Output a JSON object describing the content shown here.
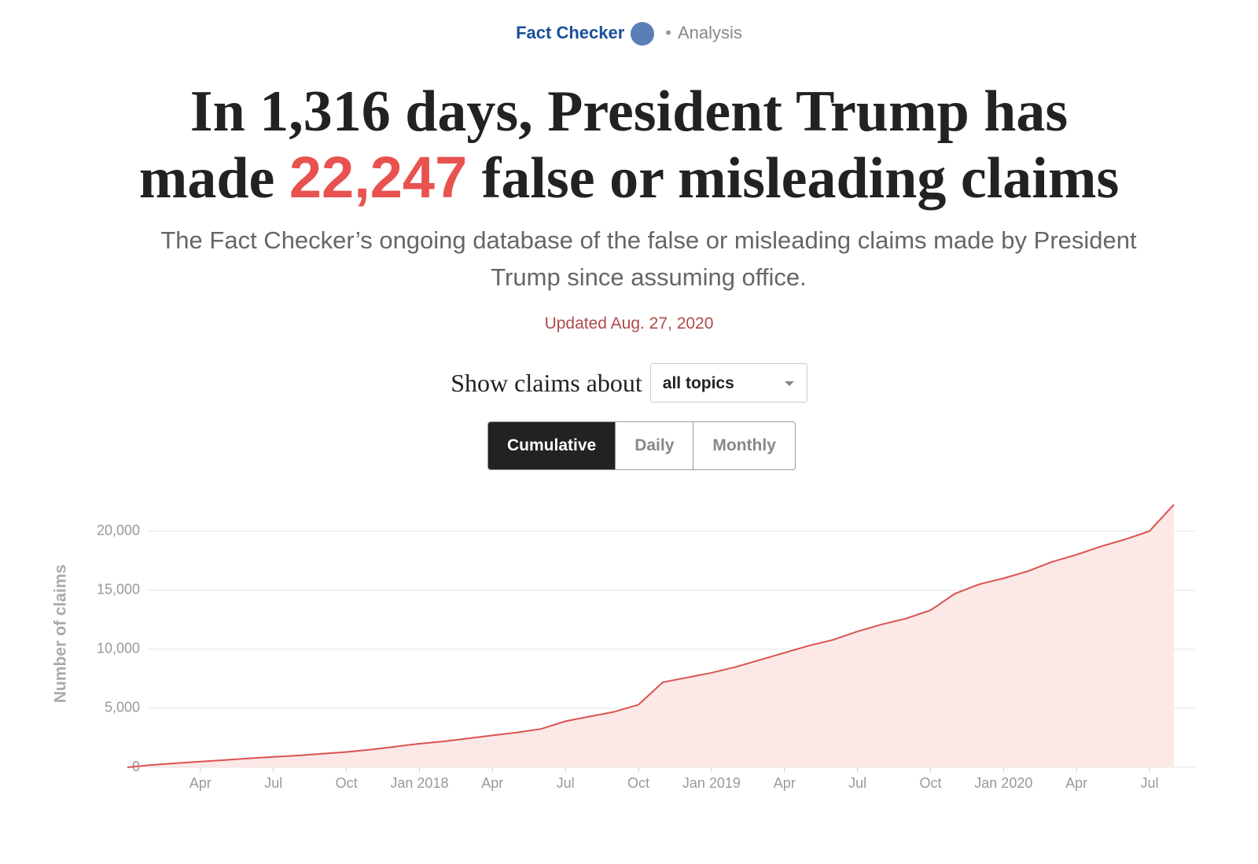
{
  "header": {
    "section": "Fact Checker",
    "label": "Analysis"
  },
  "headline": {
    "before": "In 1,316 days, President Trump has made",
    "number": "22,247",
    "after": "false or misleading claims"
  },
  "subtitle": "The Fact Checker’s ongoing database of the false or misleading claims made by President Trump since assuming office.",
  "updated": "Updated Aug. 27, 2020",
  "filter": {
    "label": "Show claims about",
    "selected": "all topics"
  },
  "views": [
    "Cumulative",
    "Daily",
    "Monthly"
  ],
  "active_view": "Cumulative",
  "chart_data": {
    "type": "area",
    "y_label": "Number of claims",
    "x": [
      "2017-01",
      "2017-02",
      "2017-03",
      "2017-04",
      "2017-05",
      "2017-06",
      "2017-07",
      "2017-08",
      "2017-09",
      "2017-10",
      "2017-11",
      "2017-12",
      "2018-01",
      "2018-02",
      "2018-03",
      "2018-04",
      "2018-05",
      "2018-06",
      "2018-07",
      "2018-08",
      "2018-09",
      "2018-10",
      "2018-11",
      "2018-12",
      "2019-01",
      "2019-02",
      "2019-03",
      "2019-04",
      "2019-05",
      "2019-06",
      "2019-07",
      "2019-08",
      "2019-09",
      "2019-10",
      "2019-11",
      "2019-12",
      "2020-01",
      "2020-02",
      "2020-03",
      "2020-04",
      "2020-05",
      "2020-06",
      "2020-07",
      "2020-08"
    ],
    "values": [
      0,
      200,
      350,
      480,
      620,
      760,
      880,
      1000,
      1150,
      1300,
      1500,
      1750,
      2000,
      2200,
      2450,
      2700,
      2950,
      3250,
      3900,
      4300,
      4700,
      5300,
      7200,
      7600,
      8000,
      8500,
      9100,
      9700,
      10300,
      10800,
      11500,
      12100,
      12600,
      13300,
      14700,
      15500,
      16000,
      16600,
      17400,
      18000,
      18700,
      19300,
      20000,
      22247
    ],
    "color": "#d9534f",
    "fill": "#fbe8e7",
    "xlim": [
      "2017-01",
      "2020-08"
    ],
    "xticks": [
      {
        "value": "2017-04",
        "label": "Apr"
      },
      {
        "value": "2017-07",
        "label": "Jul"
      },
      {
        "value": "2017-10",
        "label": "Oct"
      },
      {
        "value": "2018-01",
        "label": "Jan 2018"
      },
      {
        "value": "2018-04",
        "label": "Apr"
      },
      {
        "value": "2018-07",
        "label": "Jul"
      },
      {
        "value": "2018-10",
        "label": "Oct"
      },
      {
        "value": "2019-01",
        "label": "Jan 2019"
      },
      {
        "value": "2019-04",
        "label": "Apr"
      },
      {
        "value": "2019-07",
        "label": "Jul"
      },
      {
        "value": "2019-10",
        "label": "Oct"
      },
      {
        "value": "2020-01",
        "label": "Jan 2020"
      },
      {
        "value": "2020-04",
        "label": "Apr"
      },
      {
        "value": "2020-07",
        "label": "Jul"
      }
    ],
    "ylim": [
      0,
      22500
    ],
    "yticks": [
      0,
      {
        "value": 5000,
        "label": "5,000"
      },
      {
        "value": 10000,
        "label": "10,000"
      },
      {
        "value": 15000,
        "label": "15,000"
      },
      {
        "value": 20000,
        "label": "20,000"
      }
    ],
    "grid": true
  }
}
